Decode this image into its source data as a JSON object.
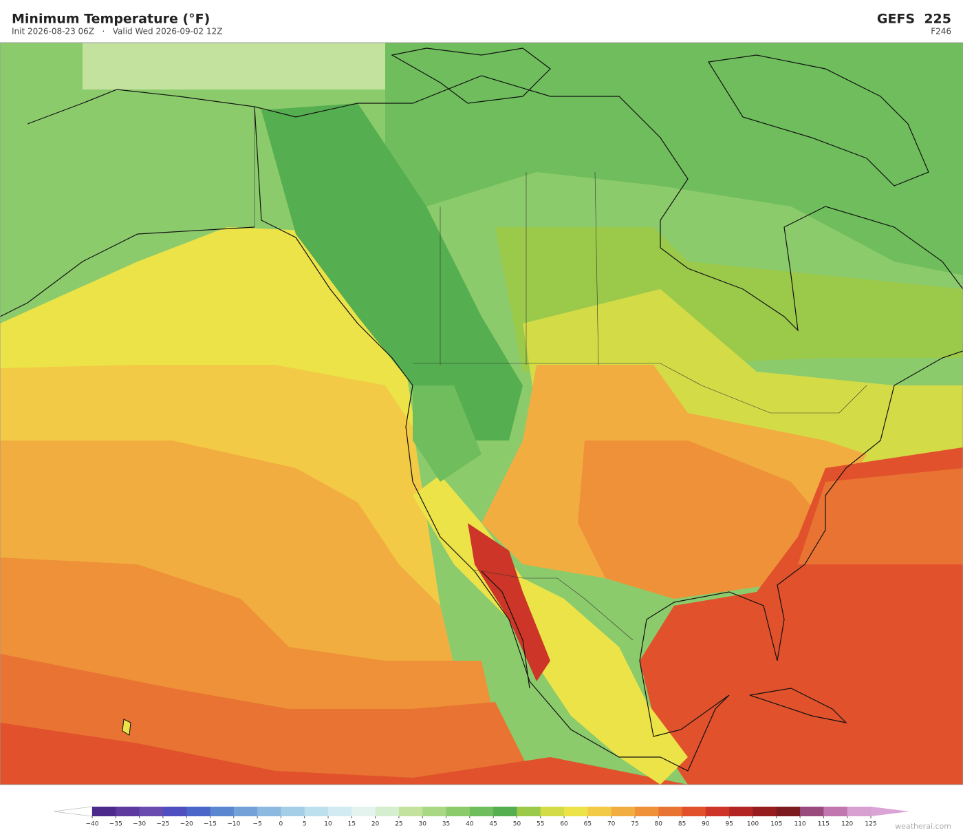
{
  "header": {
    "title": "Minimum Temperature  (°F)",
    "subtitle": "Init 2026-08-23 06Z   ·   Valid Wed 2026-09-02 12Z",
    "model": "GEFS  225",
    "forecast_hour": "F246"
  },
  "colorbar": {
    "ticks": [
      {
        "value": -40,
        "label": "−40"
      },
      {
        "value": -35,
        "label": "−35"
      },
      {
        "value": -30,
        "label": "−30"
      },
      {
        "value": -25,
        "label": "−25"
      },
      {
        "value": -20,
        "label": "−20"
      },
      {
        "value": -15,
        "label": "−15"
      },
      {
        "value": -10,
        "label": "−10"
      },
      {
        "value": -5,
        "label": "−5"
      },
      0,
      5,
      10,
      15,
      20,
      25,
      30,
      35,
      40,
      45,
      50,
      55,
      60,
      65,
      70,
      75,
      80,
      85,
      90,
      95,
      100,
      105,
      110,
      115,
      120,
      125
    ],
    "colors": [
      "#4b2a8c",
      "#5e3a9e",
      "#6a4bb0",
      "#4f4fc0",
      "#4a66c8",
      "#5b86d0",
      "#74a2d8",
      "#8cb9e0",
      "#a4cde8",
      "#bde0ef",
      "#d2ebf2",
      "#e4f3ee",
      "#d6eed0",
      "#c2e29e",
      "#a8d884",
      "#8ccb6c",
      "#6fbd5c",
      "#55ae4f",
      "#9bc94a",
      "#d3dc47",
      "#ece348",
      "#f3ca45",
      "#f2ad40",
      "#ee9138",
      "#e87332",
      "#e0512c",
      "#cc3527",
      "#b22522",
      "#951d1e",
      "#7c1b1f",
      "#9a4b7d",
      "#c276b0",
      "#d8a0d0"
    ],
    "under_color": "#ffffff",
    "over_color": "#dba4d6"
  },
  "watermark": "weatherai.com"
}
